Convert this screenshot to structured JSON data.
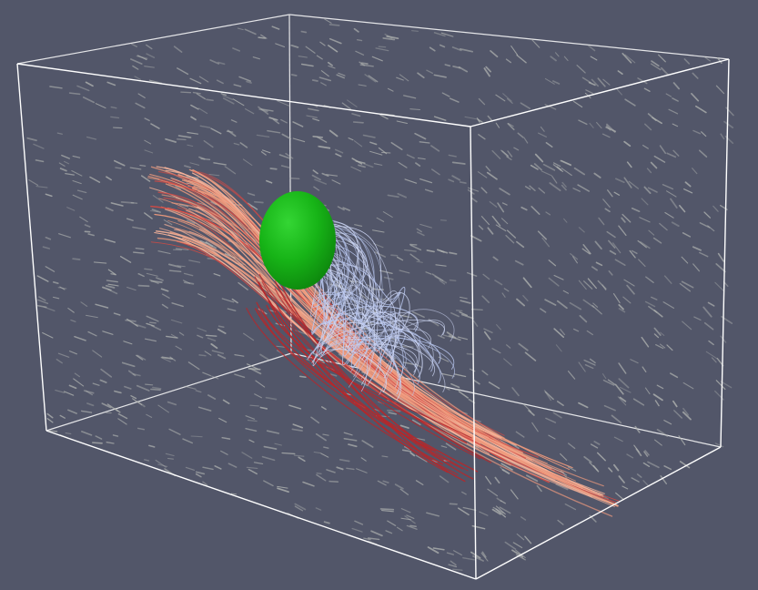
{
  "scene": {
    "background_color": "#525669",
    "bounding_box_color": "#ffffff",
    "obstacle": {
      "shape": "sphere",
      "color": "#17b417"
    },
    "glyphs": {
      "kind": "arrow-glyphs",
      "color": "#b2b5b2"
    },
    "streamlines": {
      "colormap": [
        "#cfd8f6",
        "#b8c6ee",
        "#f6b39a",
        "#f09b7d",
        "#d24a44",
        "#b5282b"
      ]
    }
  }
}
